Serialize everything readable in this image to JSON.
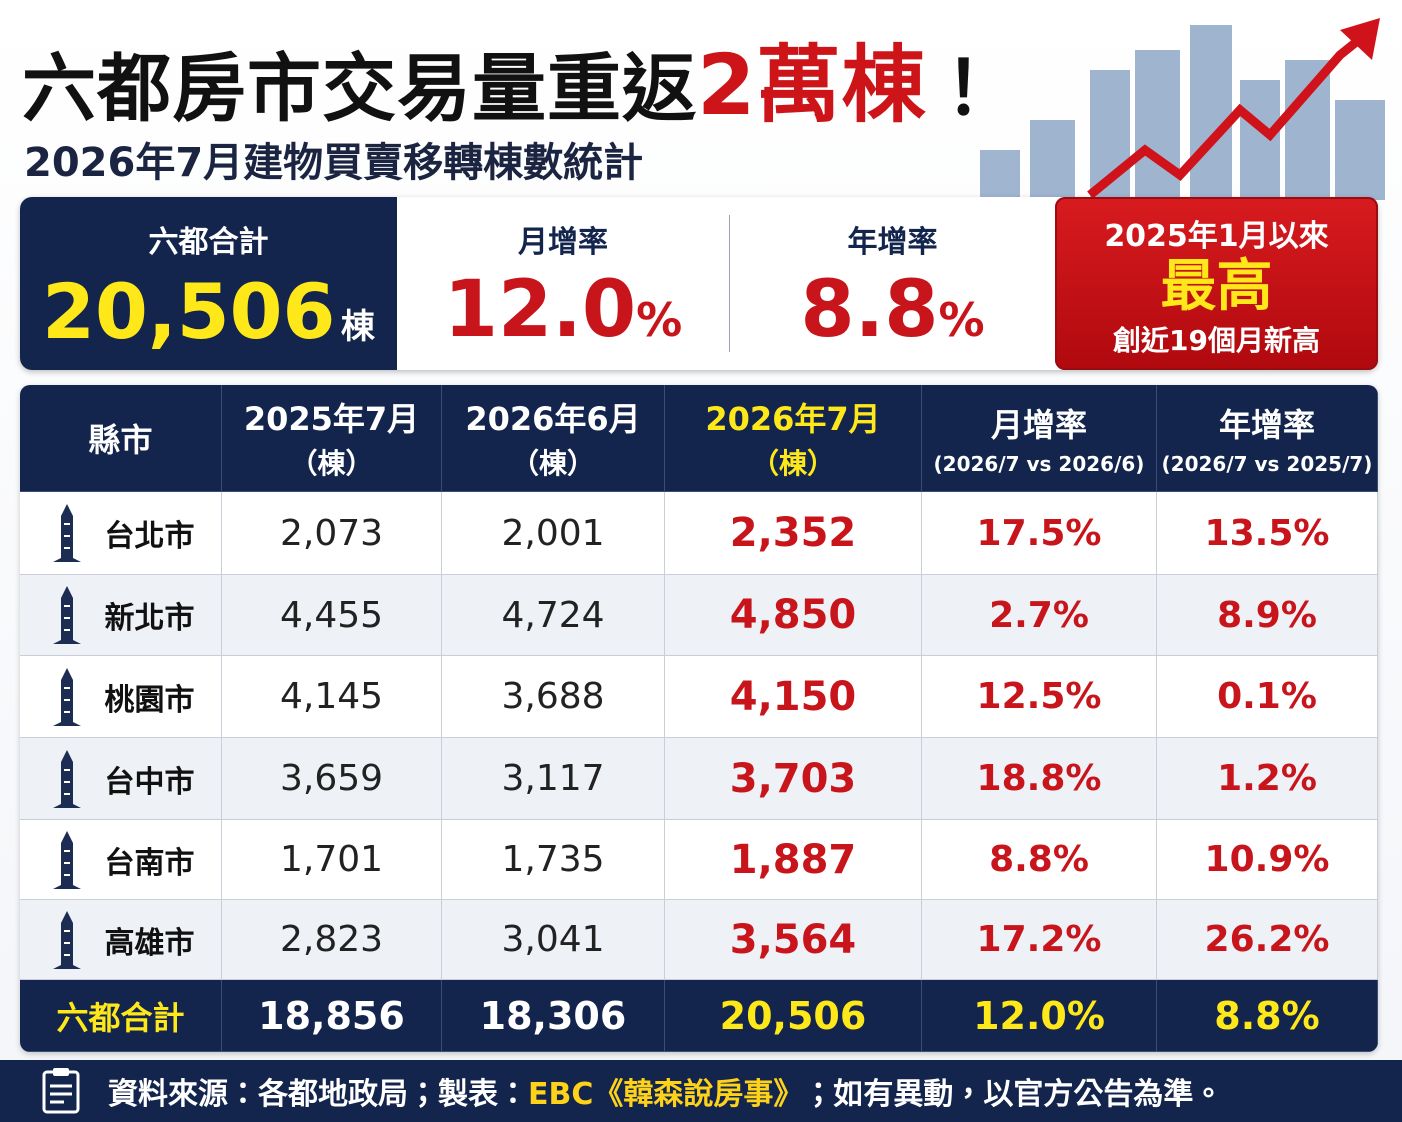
{
  "header": {
    "title": "六都房市交易量重返",
    "title_highlight": "2萬棟",
    "title_end": "！",
    "subtitle": "2026年7月建物買賣移轉棟數統計"
  },
  "summary": {
    "total": {
      "label": "六都合計",
      "value": "20,506",
      "unit": "棟"
    },
    "mom": {
      "label": "月增率",
      "value": "12.0",
      "unit": "%"
    },
    "yoy": {
      "label": "年增率",
      "value": "8.8",
      "unit": "%"
    },
    "badge": {
      "top": "2025年1月以來",
      "main": "最高",
      "bottom": "創近19個月新高"
    }
  },
  "table": {
    "headers": [
      {
        "title": "縣市"
      },
      {
        "title": "2025年7月",
        "sub": "（棟）"
      },
      {
        "title": "2026年6月",
        "sub": "（棟）"
      },
      {
        "title": "2026年7月",
        "sub": "（棟）"
      },
      {
        "title": "月增率",
        "sub": "(2026/7 vs 2026/6)"
      },
      {
        "title": "年增率",
        "sub": "(2026/7 vs 2025/7)"
      }
    ],
    "rows": [
      [
        "台北市",
        "2,073",
        "2,001",
        "2,352",
        "17.5%",
        "13.5%"
      ],
      [
        "新北市",
        "4,455",
        "4,724",
        "4,850",
        "2.7%",
        "8.9%"
      ],
      [
        "桃園市",
        "4,145",
        "3,688",
        "4,150",
        "12.5%",
        "0.1%"
      ],
      [
        "台中市",
        "3,659",
        "3,117",
        "3,703",
        "18.8%",
        "1.2%"
      ],
      [
        "台南市",
        "1,701",
        "1,735",
        "1,887",
        "8.8%",
        "10.9%"
      ],
      [
        "高雄市",
        "2,823",
        "3,041",
        "3,564",
        "17.2%",
        "26.2%"
      ]
    ],
    "total": [
      "六都合計",
      "18,856",
      "18,306",
      "20,506",
      "12.0%",
      "8.8%"
    ]
  },
  "footer": {
    "before": "資料來源：各都地政局；製表：",
    "brand": "EBC《韓森說房事》",
    "after": "；如有異動，以官方公告為準。"
  }
}
